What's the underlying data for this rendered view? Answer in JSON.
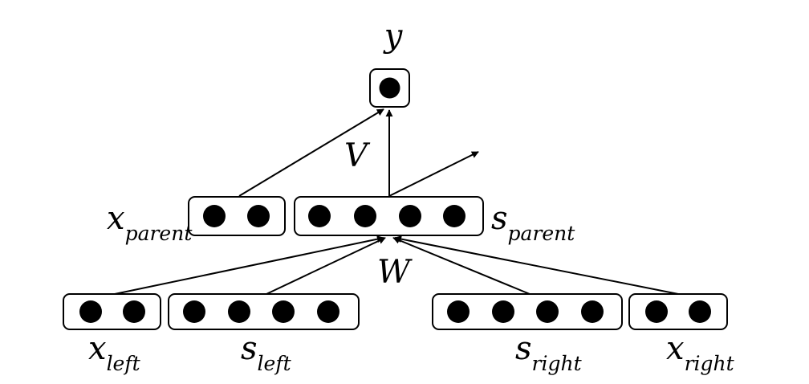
{
  "output": {
    "label": "y",
    "units": 1
  },
  "weights": {
    "v": "V",
    "w": "W"
  },
  "x_parent": {
    "base": "x",
    "sub": "parent",
    "units": 2
  },
  "s_parent": {
    "base": "s",
    "sub": "parent",
    "units": 4
  },
  "x_left": {
    "base": "x",
    "sub": "left",
    "units": 2
  },
  "s_left": {
    "base": "s",
    "sub": "left",
    "units": 4
  },
  "s_right": {
    "base": "s",
    "sub": "right",
    "units": 4
  },
  "x_right": {
    "base": "x",
    "sub": "right",
    "units": 2
  }
}
